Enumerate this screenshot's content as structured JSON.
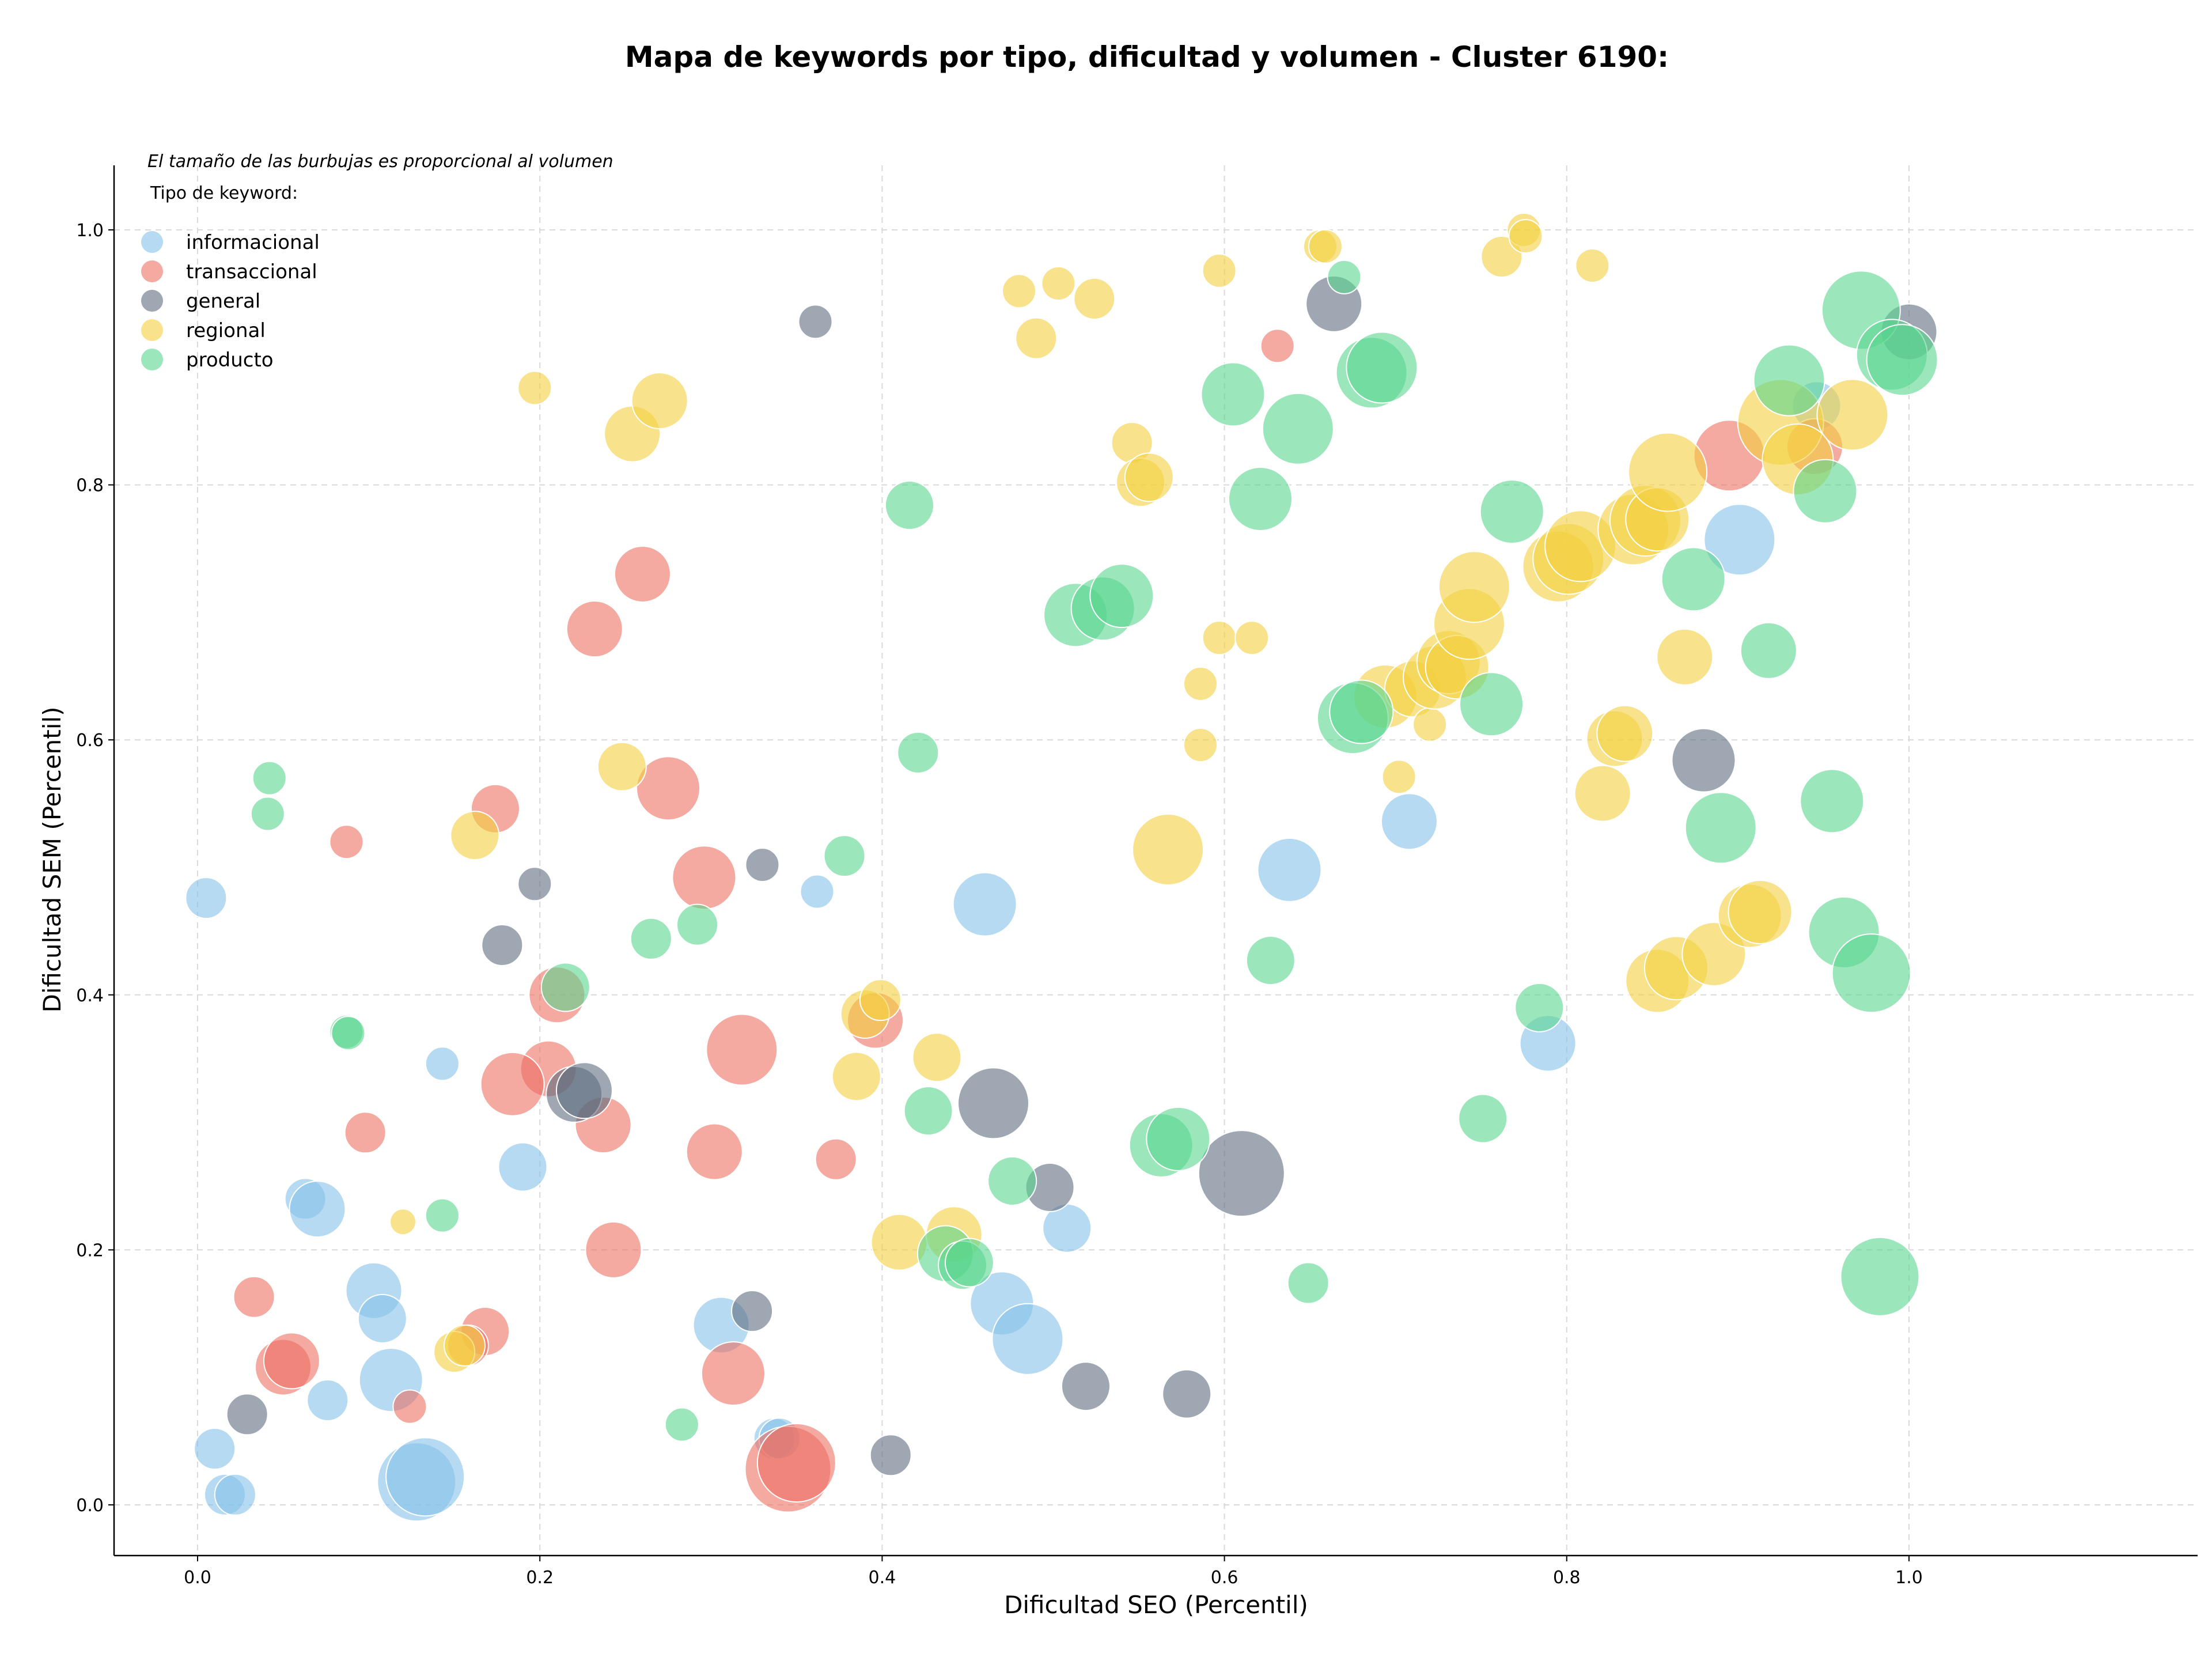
{
  "chart_data": {
    "type": "scatter",
    "title": "Mapa de keywords por tipo, dificultad y volumen - Cluster 6190:",
    "note": "El tamaño de las burbujas es proporcional al volumen",
    "legend_title": "Tipo de keyword:",
    "legend_placement": "top-left",
    "xlabel": "Dificultad SEO (Percentil)",
    "ylabel": "Dificultad SEM (Percentil)",
    "xlim": [
      -0.04,
      1.05
    ],
    "ylim": [
      -0.04,
      1.05
    ],
    "xticks": [
      "0.0",
      "0.2",
      "0.4",
      "0.6",
      "0.8",
      "1.0"
    ],
    "yticks": [
      "0.0",
      "0.2",
      "0.4",
      "0.6",
      "0.8",
      "1.0"
    ],
    "grid": true,
    "bubble_size_encodes": "volumen",
    "series": [
      {
        "name": "informacional",
        "color": "#85c1e9",
        "points": [
          {
            "x": 0.005,
            "y": 0.476,
            "s": 3
          },
          {
            "x": 0.143,
            "y": 0.346,
            "s": 2
          },
          {
            "x": 0.362,
            "y": 0.481,
            "s": 2
          },
          {
            "x": 0.063,
            "y": 0.24,
            "s": 3
          },
          {
            "x": 0.07,
            "y": 0.232,
            "s": 5
          },
          {
            "x": 0.19,
            "y": 0.265,
            "s": 4
          },
          {
            "x": 0.103,
            "y": 0.168,
            "s": 5
          },
          {
            "x": 0.108,
            "y": 0.146,
            "s": 4
          },
          {
            "x": 0.113,
            "y": 0.098,
            "s": 6
          },
          {
            "x": 0.076,
            "y": 0.082,
            "s": 3
          },
          {
            "x": 0.01,
            "y": 0.044,
            "s": 3
          },
          {
            "x": 0.016,
            "y": 0.008,
            "s": 3
          },
          {
            "x": 0.022,
            "y": 0.008,
            "s": 3
          },
          {
            "x": 0.128,
            "y": 0.018,
            "s": 8
          },
          {
            "x": 0.133,
            "y": 0.022,
            "s": 8
          },
          {
            "x": 0.306,
            "y": 0.141,
            "s": 5
          },
          {
            "x": 0.337,
            "y": 0.052,
            "s": 3
          },
          {
            "x": 0.34,
            "y": 0.052,
            "s": 3
          },
          {
            "x": 0.46,
            "y": 0.471,
            "s": 6
          },
          {
            "x": 0.47,
            "y": 0.158,
            "s": 6
          },
          {
            "x": 0.485,
            "y": 0.13,
            "s": 7
          },
          {
            "x": 0.508,
            "y": 0.217,
            "s": 4
          },
          {
            "x": 0.638,
            "y": 0.498,
            "s": 6
          },
          {
            "x": 0.708,
            "y": 0.536,
            "s": 5
          },
          {
            "x": 0.789,
            "y": 0.362,
            "s": 5
          },
          {
            "x": 0.901,
            "y": 0.757,
            "s": 7
          },
          {
            "x": 0.946,
            "y": 0.862,
            "s": 4
          }
        ]
      },
      {
        "name": "transaccional",
        "color": "#ec7063",
        "points": [
          {
            "x": 0.087,
            "y": 0.52,
            "s": 2
          },
          {
            "x": 0.174,
            "y": 0.546,
            "s": 4
          },
          {
            "x": 0.26,
            "y": 0.73,
            "s": 5
          },
          {
            "x": 0.232,
            "y": 0.687,
            "s": 5
          },
          {
            "x": 0.275,
            "y": 0.562,
            "s": 6
          },
          {
            "x": 0.296,
            "y": 0.492,
            "s": 6
          },
          {
            "x": 0.21,
            "y": 0.4,
            "s": 5
          },
          {
            "x": 0.205,
            "y": 0.342,
            "s": 5
          },
          {
            "x": 0.184,
            "y": 0.33,
            "s": 6
          },
          {
            "x": 0.098,
            "y": 0.292,
            "s": 3
          },
          {
            "x": 0.237,
            "y": 0.298,
            "s": 5
          },
          {
            "x": 0.318,
            "y": 0.357,
            "s": 7
          },
          {
            "x": 0.302,
            "y": 0.277,
            "s": 5
          },
          {
            "x": 0.373,
            "y": 0.271,
            "s": 3
          },
          {
            "x": 0.396,
            "y": 0.38,
            "s": 5
          },
          {
            "x": 0.243,
            "y": 0.2,
            "s": 5
          },
          {
            "x": 0.033,
            "y": 0.163,
            "s": 3
          },
          {
            "x": 0.05,
            "y": 0.108,
            "s": 5
          },
          {
            "x": 0.055,
            "y": 0.113,
            "s": 5
          },
          {
            "x": 0.168,
            "y": 0.136,
            "s": 4
          },
          {
            "x": 0.158,
            "y": 0.125,
            "s": 3
          },
          {
            "x": 0.124,
            "y": 0.077,
            "s": 2
          },
          {
            "x": 0.313,
            "y": 0.103,
            "s": 6
          },
          {
            "x": 0.345,
            "y": 0.028,
            "s": 9
          },
          {
            "x": 0.35,
            "y": 0.033,
            "s": 8
          },
          {
            "x": 0.631,
            "y": 0.909,
            "s": 2
          },
          {
            "x": 0.895,
            "y": 0.823,
            "s": 7
          },
          {
            "x": 0.945,
            "y": 0.83,
            "s": 5
          }
        ]
      },
      {
        "name": "general",
        "color": "#5d6d7e",
        "points": [
          {
            "x": 0.361,
            "y": 0.928,
            "s": 2
          },
          {
            "x": 0.197,
            "y": 0.487,
            "s": 2
          },
          {
            "x": 0.33,
            "y": 0.502,
            "s": 2
          },
          {
            "x": 0.178,
            "y": 0.439,
            "s": 3
          },
          {
            "x": 0.22,
            "y": 0.322,
            "s": 5
          },
          {
            "x": 0.226,
            "y": 0.325,
            "s": 5
          },
          {
            "x": 0.465,
            "y": 0.315,
            "s": 7
          },
          {
            "x": 0.498,
            "y": 0.249,
            "s": 4
          },
          {
            "x": 0.029,
            "y": 0.071,
            "s": 3
          },
          {
            "x": 0.324,
            "y": 0.152,
            "s": 3
          },
          {
            "x": 0.405,
            "y": 0.039,
            "s": 3
          },
          {
            "x": 0.519,
            "y": 0.093,
            "s": 4
          },
          {
            "x": 0.578,
            "y": 0.087,
            "s": 4
          },
          {
            "x": 0.61,
            "y": 0.26,
            "s": 9
          },
          {
            "x": 0.664,
            "y": 0.942,
            "s": 5
          },
          {
            "x": 0.88,
            "y": 0.584,
            "s": 6
          },
          {
            "x": 1.0,
            "y": 0.92,
            "s": 5
          }
        ]
      },
      {
        "name": "regional",
        "color": "#f4d03f",
        "points": [
          {
            "x": 0.197,
            "y": 0.876,
            "s": 2
          },
          {
            "x": 0.254,
            "y": 0.84,
            "s": 5
          },
          {
            "x": 0.27,
            "y": 0.866,
            "s": 5
          },
          {
            "x": 0.248,
            "y": 0.579,
            "s": 4
          },
          {
            "x": 0.162,
            "y": 0.525,
            "s": 4
          },
          {
            "x": 0.12,
            "y": 0.222,
            "s": 1
          },
          {
            "x": 0.15,
            "y": 0.12,
            "s": 3
          },
          {
            "x": 0.156,
            "y": 0.125,
            "s": 3
          },
          {
            "x": 0.385,
            "y": 0.336,
            "s": 4
          },
          {
            "x": 0.39,
            "y": 0.385,
            "s": 4
          },
          {
            "x": 0.399,
            "y": 0.396,
            "s": 3
          },
          {
            "x": 0.41,
            "y": 0.206,
            "s": 5
          },
          {
            "x": 0.432,
            "y": 0.351,
            "s": 4
          },
          {
            "x": 0.442,
            "y": 0.212,
            "s": 5
          },
          {
            "x": 0.48,
            "y": 0.952,
            "s": 2
          },
          {
            "x": 0.49,
            "y": 0.915,
            "s": 3
          },
          {
            "x": 0.503,
            "y": 0.958,
            "s": 2
          },
          {
            "x": 0.524,
            "y": 0.946,
            "s": 3
          },
          {
            "x": 0.546,
            "y": 0.833,
            "s": 3
          },
          {
            "x": 0.551,
            "y": 0.802,
            "s": 4
          },
          {
            "x": 0.556,
            "y": 0.806,
            "s": 4
          },
          {
            "x": 0.567,
            "y": 0.514,
            "s": 7
          },
          {
            "x": 0.586,
            "y": 0.644,
            "s": 2
          },
          {
            "x": 0.586,
            "y": 0.596,
            "s": 2
          },
          {
            "x": 0.597,
            "y": 0.968,
            "s": 2
          },
          {
            "x": 0.597,
            "y": 0.68,
            "s": 2
          },
          {
            "x": 0.616,
            "y": 0.68,
            "s": 2
          },
          {
            "x": 0.656,
            "y": 0.987,
            "s": 2
          },
          {
            "x": 0.659,
            "y": 0.987,
            "s": 2
          },
          {
            "x": 0.694,
            "y": 0.634,
            "s": 6
          },
          {
            "x": 0.702,
            "y": 0.571,
            "s": 2
          },
          {
            "x": 0.71,
            "y": 0.64,
            "s": 5
          },
          {
            "x": 0.72,
            "y": 0.612,
            "s": 2
          },
          {
            "x": 0.723,
            "y": 0.649,
            "s": 6
          },
          {
            "x": 0.731,
            "y": 0.661,
            "s": 6
          },
          {
            "x": 0.736,
            "y": 0.657,
            "s": 6
          },
          {
            "x": 0.743,
            "y": 0.691,
            "s": 7
          },
          {
            "x": 0.746,
            "y": 0.72,
            "s": 7
          },
          {
            "x": 0.762,
            "y": 0.979,
            "s": 3
          },
          {
            "x": 0.775,
            "y": 1.0,
            "s": 2
          },
          {
            "x": 0.776,
            "y": 0.995,
            "s": 2
          },
          {
            "x": 0.795,
            "y": 0.736,
            "s": 7
          },
          {
            "x": 0.801,
            "y": 0.742,
            "s": 7
          },
          {
            "x": 0.808,
            "y": 0.752,
            "s": 7
          },
          {
            "x": 0.815,
            "y": 0.972,
            "s": 2
          },
          {
            "x": 0.821,
            "y": 0.558,
            "s": 5
          },
          {
            "x": 0.828,
            "y": 0.601,
            "s": 5
          },
          {
            "x": 0.834,
            "y": 0.605,
            "s": 5
          },
          {
            "x": 0.839,
            "y": 0.765,
            "s": 7
          },
          {
            "x": 0.846,
            "y": 0.772,
            "s": 7
          },
          {
            "x": 0.853,
            "y": 0.773,
            "s": 6
          },
          {
            "x": 0.853,
            "y": 0.411,
            "s": 6
          },
          {
            "x": 0.859,
            "y": 0.81,
            "s": 8
          },
          {
            "x": 0.864,
            "y": 0.421,
            "s": 6
          },
          {
            "x": 0.869,
            "y": 0.665,
            "s": 5
          },
          {
            "x": 0.886,
            "y": 0.432,
            "s": 6
          },
          {
            "x": 0.907,
            "y": 0.462,
            "s": 6
          },
          {
            "x": 0.913,
            "y": 0.465,
            "s": 6
          },
          {
            "x": 0.925,
            "y": 0.849,
            "s": 9
          },
          {
            "x": 0.935,
            "y": 0.82,
            "s": 7
          },
          {
            "x": 0.967,
            "y": 0.855,
            "s": 7
          }
        ]
      },
      {
        "name": "producto",
        "color": "#58d68d",
        "points": [
          {
            "x": 0.042,
            "y": 0.57,
            "s": 2
          },
          {
            "x": 0.041,
            "y": 0.542,
            "s": 2
          },
          {
            "x": 0.087,
            "y": 0.371,
            "s": 2
          },
          {
            "x": 0.088,
            "y": 0.37,
            "s": 2
          },
          {
            "x": 0.143,
            "y": 0.227,
            "s": 2
          },
          {
            "x": 0.215,
            "y": 0.406,
            "s": 4
          },
          {
            "x": 0.265,
            "y": 0.444,
            "s": 3
          },
          {
            "x": 0.292,
            "y": 0.455,
            "s": 3
          },
          {
            "x": 0.378,
            "y": 0.509,
            "s": 3
          },
          {
            "x": 0.283,
            "y": 0.063,
            "s": 2
          },
          {
            "x": 0.416,
            "y": 0.784,
            "s": 4
          },
          {
            "x": 0.421,
            "y": 0.59,
            "s": 3
          },
          {
            "x": 0.427,
            "y": 0.309,
            "s": 4
          },
          {
            "x": 0.437,
            "y": 0.197,
            "s": 5
          },
          {
            "x": 0.447,
            "y": 0.188,
            "s": 4
          },
          {
            "x": 0.451,
            "y": 0.19,
            "s": 4
          },
          {
            "x": 0.476,
            "y": 0.254,
            "s": 4
          },
          {
            "x": 0.513,
            "y": 0.698,
            "s": 6
          },
          {
            "x": 0.529,
            "y": 0.703,
            "s": 6
          },
          {
            "x": 0.54,
            "y": 0.713,
            "s": 6
          },
          {
            "x": 0.563,
            "y": 0.282,
            "s": 6
          },
          {
            "x": 0.573,
            "y": 0.287,
            "s": 6
          },
          {
            "x": 0.605,
            "y": 0.871,
            "s": 6
          },
          {
            "x": 0.621,
            "y": 0.789,
            "s": 6
          },
          {
            "x": 0.627,
            "y": 0.427,
            "s": 4
          },
          {
            "x": 0.643,
            "y": 0.844,
            "s": 7
          },
          {
            "x": 0.649,
            "y": 0.174,
            "s": 3
          },
          {
            "x": 0.67,
            "y": 0.963,
            "s": 2
          },
          {
            "x": 0.675,
            "y": 0.617,
            "s": 7
          },
          {
            "x": 0.68,
            "y": 0.622,
            "s": 6
          },
          {
            "x": 0.686,
            "y": 0.888,
            "s": 7
          },
          {
            "x": 0.692,
            "y": 0.892,
            "s": 7
          },
          {
            "x": 0.751,
            "y": 0.303,
            "s": 4
          },
          {
            "x": 0.756,
            "y": 0.628,
            "s": 6
          },
          {
            "x": 0.768,
            "y": 0.779,
            "s": 6
          },
          {
            "x": 0.784,
            "y": 0.39,
            "s": 4
          },
          {
            "x": 0.874,
            "y": 0.726,
            "s": 6
          },
          {
            "x": 0.89,
            "y": 0.531,
            "s": 7
          },
          {
            "x": 0.918,
            "y": 0.67,
            "s": 5
          },
          {
            "x": 0.93,
            "y": 0.882,
            "s": 7
          },
          {
            "x": 0.951,
            "y": 0.795,
            "s": 6
          },
          {
            "x": 0.955,
            "y": 0.552,
            "s": 6
          },
          {
            "x": 0.962,
            "y": 0.449,
            "s": 7
          },
          {
            "x": 0.972,
            "y": 0.937,
            "s": 8
          },
          {
            "x": 0.978,
            "y": 0.417,
            "s": 8
          },
          {
            "x": 0.983,
            "y": 0.179,
            "s": 8
          },
          {
            "x": 0.99,
            "y": 0.902,
            "s": 7
          },
          {
            "x": 0.996,
            "y": 0.898,
            "s": 7
          }
        ]
      }
    ]
  }
}
